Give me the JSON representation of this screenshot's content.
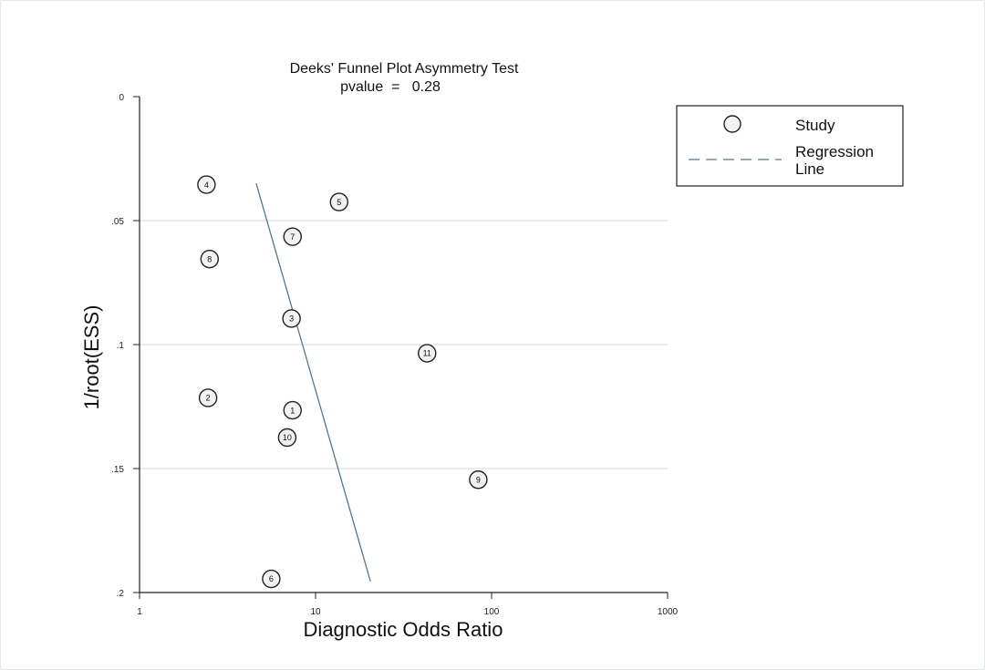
{
  "chart_data": {
    "type": "scatter",
    "title": "Deeks' Funnel Plot Asymmetry Test",
    "subtitle": "pvalue  =   0.28",
    "xlabel": "Diagnostic Odds Ratio",
    "ylabel": "1/root(ESS)",
    "xscale": "log",
    "xlim": [
      1,
      1000
    ],
    "ylim": [
      0,
      0.2
    ],
    "yaxis_reversed": true,
    "x_ticks": [
      1,
      10,
      100,
      1000
    ],
    "x_tick_labels": [
      "1",
      "10",
      "100",
      "1000"
    ],
    "y_ticks": [
      0,
      0.05,
      0.1,
      0.15,
      0.2
    ],
    "y_tick_labels": [
      "0",
      ".05",
      ".1",
      ".15",
      ".2"
    ],
    "gridlines_y": [
      0.05,
      0.1,
      0.15
    ],
    "points": [
      {
        "label": "1",
        "x": 7.4,
        "y": 0.1265
      },
      {
        "label": "2",
        "x": 2.45,
        "y": 0.1215
      },
      {
        "label": "3",
        "x": 7.3,
        "y": 0.0895
      },
      {
        "label": "4",
        "x": 2.4,
        "y": 0.0355
      },
      {
        "label": "5",
        "x": 13.6,
        "y": 0.0425
      },
      {
        "label": "6",
        "x": 5.6,
        "y": 0.1945
      },
      {
        "label": "7",
        "x": 7.4,
        "y": 0.0565
      },
      {
        "label": "8",
        "x": 2.5,
        "y": 0.0655
      },
      {
        "label": "9",
        "x": 84,
        "y": 0.1545
      },
      {
        "label": "10",
        "x": 6.9,
        "y": 0.1375
      },
      {
        "label": "11",
        "x": 43,
        "y": 0.1035
      }
    ],
    "regression_line": [
      {
        "x": 4.6,
        "y": 0.035
      },
      {
        "x": 20.5,
        "y": 0.1955
      }
    ],
    "legend": {
      "position": "top-right",
      "items": [
        "Study",
        "Regression\nLine"
      ],
      "study_label": "Study",
      "regression_label_line1": "Regression",
      "regression_label_line2": "Line"
    },
    "colors": {
      "regression": "#4d7a93",
      "grid": "#cfd8d8",
      "marker_fill": "#f2f2f2",
      "axis": "#222222"
    }
  }
}
